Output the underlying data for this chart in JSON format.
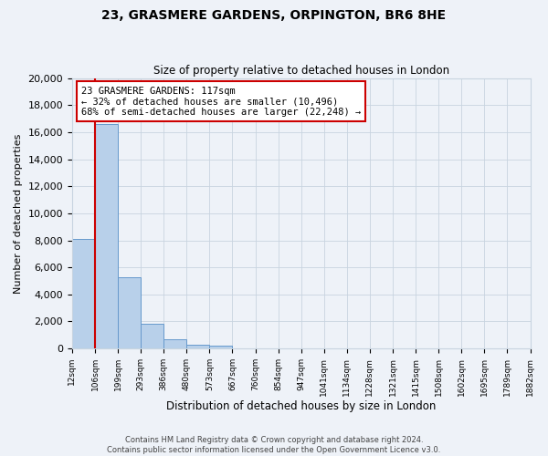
{
  "title": "23, GRASMERE GARDENS, ORPINGTON, BR6 8HE",
  "subtitle": "Size of property relative to detached houses in London",
  "xlabel": "Distribution of detached houses by size in London",
  "ylabel": "Number of detached properties",
  "bar_color": "#b8d0ea",
  "bar_edge_color": "#6699cc",
  "bin_labels": [
    "12sqm",
    "106sqm",
    "199sqm",
    "293sqm",
    "386sqm",
    "480sqm",
    "573sqm",
    "667sqm",
    "760sqm",
    "854sqm",
    "947sqm",
    "1041sqm",
    "1134sqm",
    "1228sqm",
    "1321sqm",
    "1415sqm",
    "1508sqm",
    "1602sqm",
    "1695sqm",
    "1789sqm",
    "1882sqm"
  ],
  "bar_heights": [
    8100,
    16600,
    5300,
    1800,
    700,
    300,
    200,
    0,
    0,
    0,
    0,
    0,
    0,
    0,
    0,
    0,
    0,
    0,
    0,
    0
  ],
  "ylim": [
    0,
    20000
  ],
  "yticks": [
    0,
    2000,
    4000,
    6000,
    8000,
    10000,
    12000,
    14000,
    16000,
    18000,
    20000
  ],
  "vline_x": 1.0,
  "vline_color": "#cc0000",
  "annotation_title": "23 GRASMERE GARDENS: 117sqm",
  "annotation_line1": "← 32% of detached houses are smaller (10,496)",
  "annotation_line2": "68% of semi-detached houses are larger (22,248) →",
  "annotation_box_color": "#ffffff",
  "annotation_box_edge": "#cc0000",
  "footer1": "Contains HM Land Registry data © Crown copyright and database right 2024.",
  "footer2": "Contains public sector information licensed under the Open Government Licence v3.0.",
  "background_color": "#eef2f8"
}
